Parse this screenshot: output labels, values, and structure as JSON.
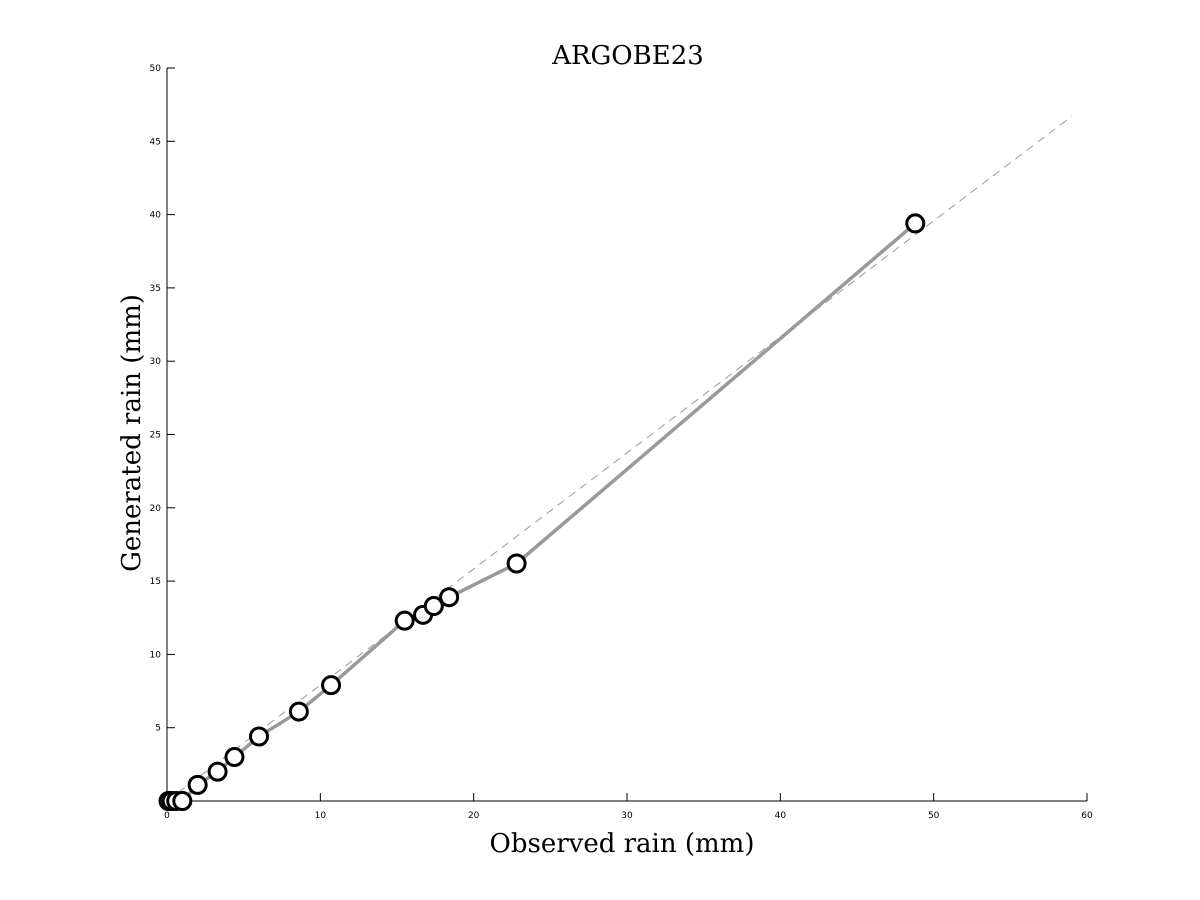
{
  "chart_data": {
    "type": "scatter",
    "title": "ARGOBE23",
    "xlabel": "Observed rain (mm)",
    "ylabel": "Generated rain (mm)",
    "xlim": [
      0,
      60
    ],
    "ylim": [
      0,
      50
    ],
    "xticks": [
      0,
      10,
      20,
      30,
      40,
      50,
      60
    ],
    "yticks": [
      5,
      10,
      15,
      20,
      25,
      30,
      35,
      40,
      45,
      50
    ],
    "grid": false,
    "reference_line": {
      "style": "dashed",
      "color": "#9a9a9a",
      "from": [
        0,
        0
      ],
      "to": [
        59,
        46.7
      ]
    },
    "series": [
      {
        "line_color": "#999999",
        "marker": "circle",
        "marker_edge_color": "#000000",
        "points": [
          [
            0.1,
            0.0
          ],
          [
            0.3,
            0.0
          ],
          [
            0.6,
            0.0
          ],
          [
            1.0,
            0.0
          ],
          [
            2.0,
            1.1
          ],
          [
            3.3,
            2.0
          ],
          [
            4.4,
            3.0
          ],
          [
            6.0,
            4.4
          ],
          [
            8.6,
            6.1
          ],
          [
            10.7,
            7.9
          ],
          [
            15.5,
            12.3
          ],
          [
            16.7,
            12.7
          ],
          [
            17.4,
            13.3
          ],
          [
            18.4,
            13.9
          ],
          [
            22.8,
            16.2
          ],
          [
            48.8,
            39.4
          ]
        ]
      }
    ]
  }
}
